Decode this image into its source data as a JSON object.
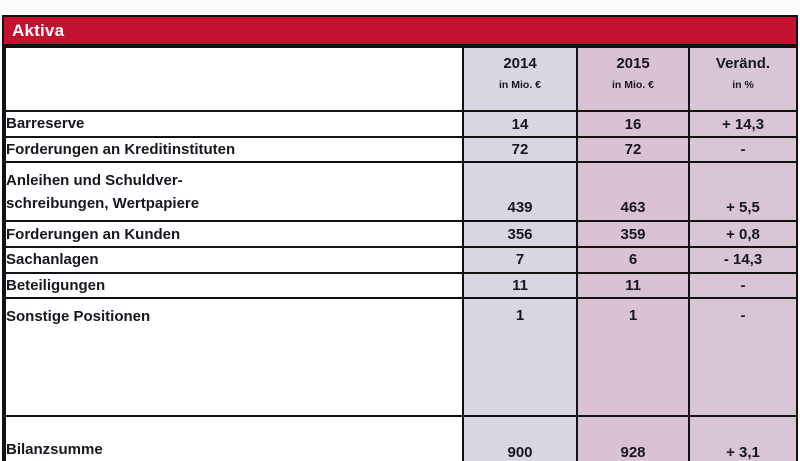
{
  "title": "Aktiva",
  "columns": {
    "y2014": {
      "year": "2014",
      "unit": "in Mio. €"
    },
    "y2015": {
      "year": "2015",
      "unit": "in Mio. €"
    },
    "change": {
      "year": "Veränd.",
      "unit": "in %"
    }
  },
  "rows": [
    {
      "label": "Barreserve",
      "v2014": "14",
      "v2015": "16",
      "change": "+ 14,3"
    },
    {
      "label": "Forderungen an Kreditinstituten",
      "v2014": "72",
      "v2015": "72",
      "change": "-"
    },
    {
      "label": "Anleihen und Schuldver-\nschreibungen, Wertpapiere",
      "v2014": "439",
      "v2015": "463",
      "change": "+ 5,5"
    },
    {
      "label": "Forderungen an Kunden",
      "v2014": "356",
      "v2015": "359",
      "change": "+ 0,8"
    },
    {
      "label": "Sachanlagen",
      "v2014": "7",
      "v2015": "6",
      "change": "- 14,3"
    },
    {
      "label": "Beteiligungen",
      "v2014": "11",
      "v2015": "11",
      "change": "-"
    },
    {
      "label": "Sonstige Positionen",
      "v2014": "1",
      "v2015": "1",
      "change": "-"
    },
    {
      "label": "Bilanzsumme",
      "v2014": "900",
      "v2015": "928",
      "change": "+ 3,1"
    }
  ],
  "colors": {
    "title_bar": "#c3122f",
    "col_2014": "#d8d7e1",
    "col_2015": "#d9c2d4",
    "col_change": "#d8c6d7",
    "border": "#121212",
    "text": "#17171f"
  }
}
